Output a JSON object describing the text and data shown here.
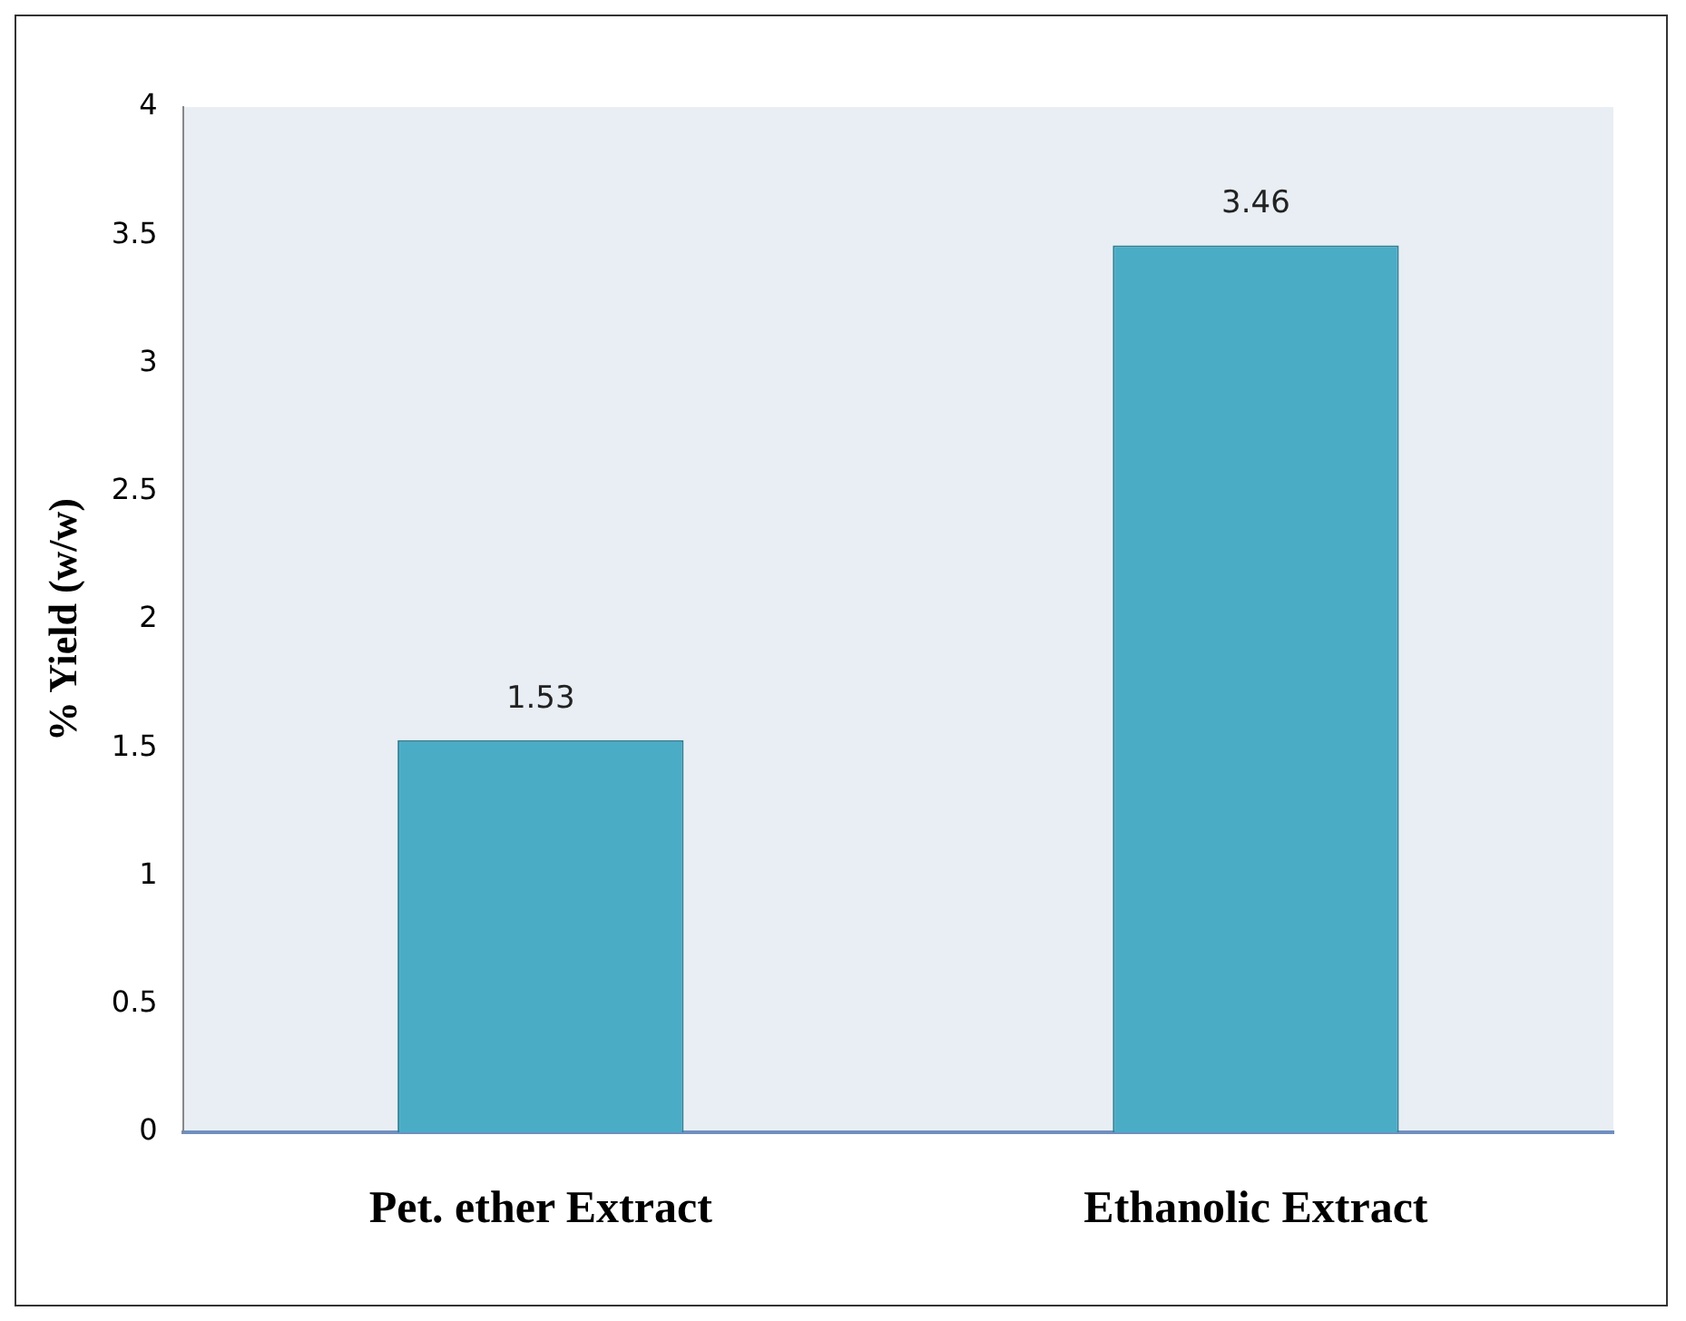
{
  "chart_data": {
    "type": "bar",
    "ylabel": "% Yield (w/w)",
    "categories": [
      "Pet. ether Extract",
      "Ethanolic Extract"
    ],
    "values": [
      1.53,
      3.46
    ],
    "color": "#4bacc6",
    "ylim": [
      0,
      4
    ],
    "yticks": [
      0,
      0.5,
      1,
      1.5,
      2,
      2.5,
      3,
      3.5,
      4
    ],
    "grid": false,
    "legend": false,
    "data_labels": true
  }
}
